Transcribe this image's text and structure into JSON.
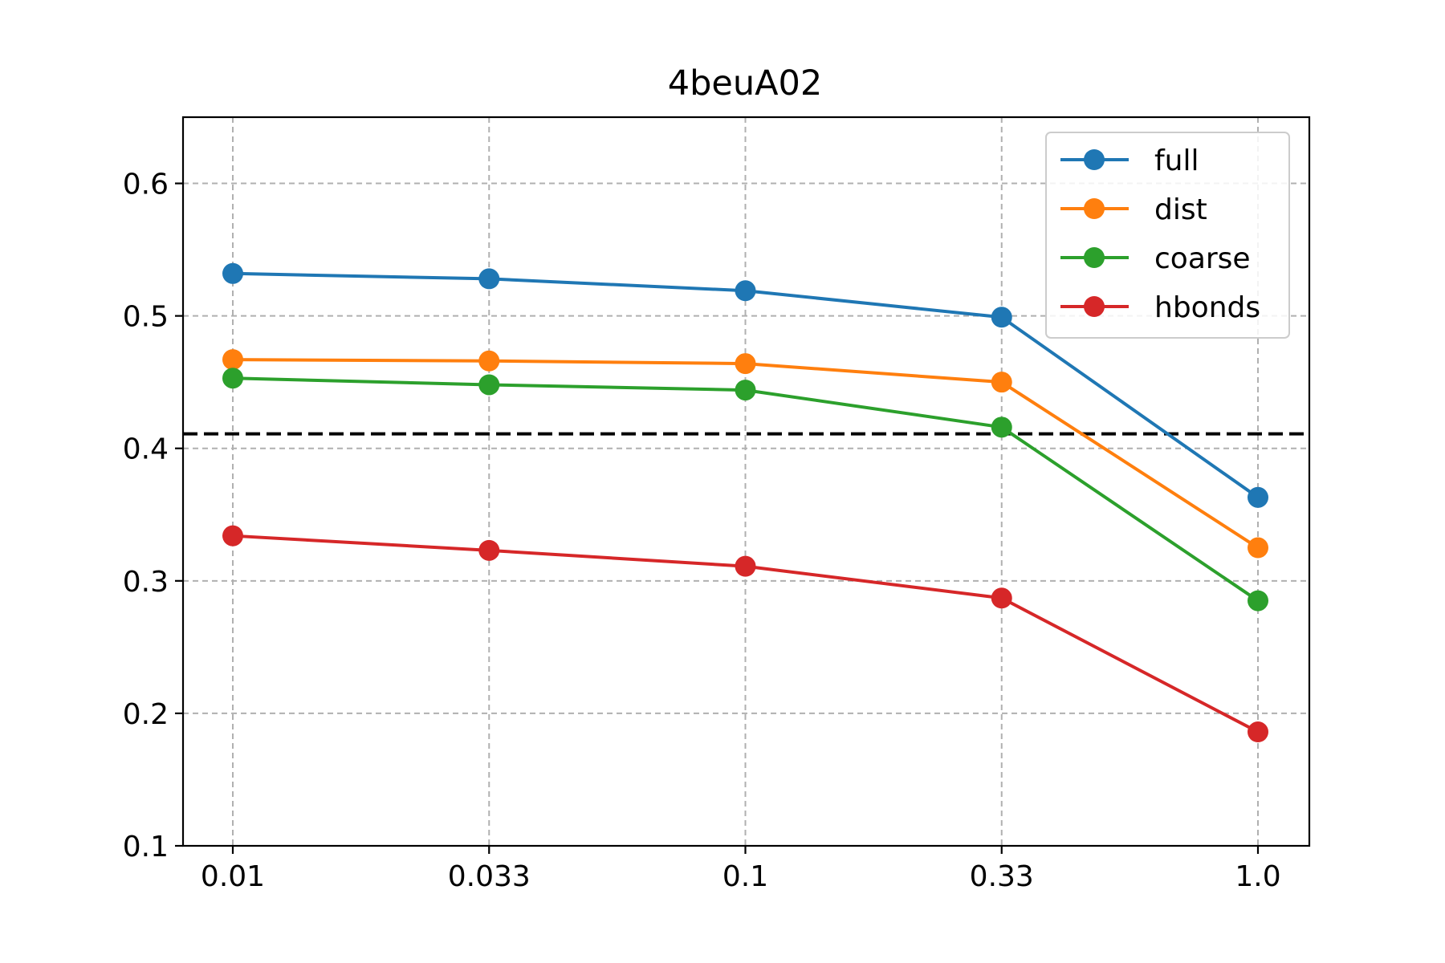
{
  "chart_data": {
    "type": "line",
    "title": "4beuA02",
    "xlabel": "",
    "ylabel": "",
    "categories": [
      "0.01",
      "0.033",
      "0.1",
      "0.33",
      "1.0"
    ],
    "yticks": [
      "0.1",
      "0.2",
      "0.3",
      "0.4",
      "0.5",
      "0.6"
    ],
    "ylim": [
      0.1,
      0.65
    ],
    "grid": true,
    "legend_position": "top-right",
    "reference_line": {
      "y": 0.411,
      "color": "#000000",
      "style": "dashed"
    },
    "series": [
      {
        "name": "full",
        "color": "#1f77b4",
        "values": [
          0.532,
          0.528,
          0.519,
          0.499,
          0.363
        ]
      },
      {
        "name": "dist",
        "color": "#ff7f0e",
        "values": [
          0.467,
          0.466,
          0.464,
          0.45,
          0.325
        ]
      },
      {
        "name": "coarse",
        "color": "#2ca02c",
        "values": [
          0.453,
          0.448,
          0.444,
          0.416,
          0.285
        ]
      },
      {
        "name": "hbonds",
        "color": "#d62728",
        "values": [
          0.334,
          0.323,
          0.311,
          0.287,
          0.186
        ]
      }
    ]
  }
}
